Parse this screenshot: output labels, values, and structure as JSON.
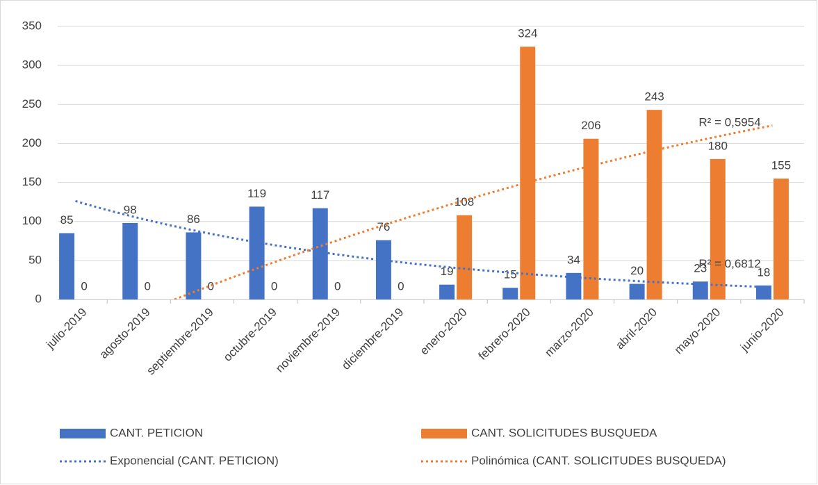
{
  "chart_data": {
    "type": "bar",
    "categories": [
      "julio-2019",
      "agosto-2019",
      "septiembre-2019",
      "octubre-2019",
      "noviembre-2019",
      "diciembre-2019",
      "enero-2020",
      "febrero-2020",
      "marzo-2020",
      "abril-2020",
      "mayo-2020",
      "junio-2020"
    ],
    "series": [
      {
        "name": "CANT. PETICION",
        "color": "#4472c4",
        "values": [
          85,
          98,
          86,
          119,
          117,
          76,
          19,
          15,
          34,
          20,
          23,
          18
        ]
      },
      {
        "name": "CANT. SOLICITUDES BUSQUEDA",
        "color": "#ed7d31",
        "values": [
          0,
          0,
          0,
          0,
          0,
          0,
          108,
          324,
          206,
          243,
          180,
          155
        ]
      }
    ],
    "trendlines": [
      {
        "name": "Exponencial (CANT. PETICION)",
        "series": 0,
        "kind": "exponential",
        "color": "#4472c4",
        "r2_label": "R² = 0,6812"
      },
      {
        "name": "Polinómica (CANT. SOLICITUDES BUSQUEDA)",
        "series": 1,
        "kind": "polynomial",
        "order": 2,
        "color": "#ed7d31",
        "r2_label": "R² = 0,5954"
      }
    ],
    "ylim": [
      0,
      350
    ],
    "yticks": [
      0,
      50,
      100,
      150,
      200,
      250,
      300,
      350
    ],
    "grid": true
  }
}
